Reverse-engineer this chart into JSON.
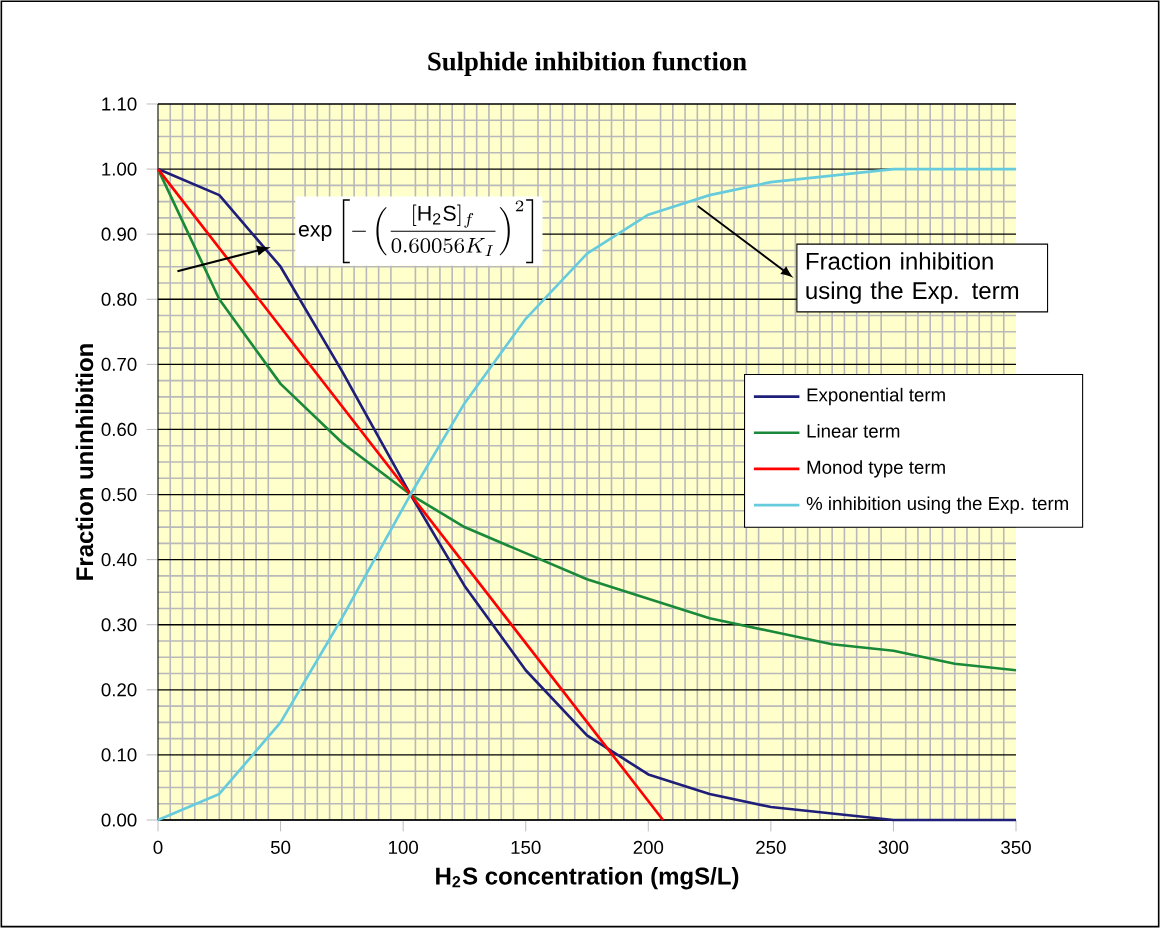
{
  "chart_data": {
    "type": "line",
    "title": "Sulphide inhibition function",
    "xlabel": "H$_{2}$S concentration (mgS/L)",
    "ylabel": "Fraction uninhibition",
    "xlim": [
      0,
      350
    ],
    "ylim": [
      0,
      1.1
    ],
    "xticks": [
      0,
      50,
      100,
      150,
      200,
      250,
      300,
      350
    ],
    "yticks": [
      {
        "value": 0,
        "label": "0.00"
      },
      {
        "value": 0.1,
        "label": "0.10"
      },
      {
        "value": 0.2,
        "label": "0.20"
      },
      {
        "value": 0.3,
        "label": "0.30"
      },
      {
        "value": 0.4,
        "label": "0.40"
      },
      {
        "value": 0.5,
        "label": "0.50"
      },
      {
        "value": 0.6,
        "label": "0.60"
      },
      {
        "value": 0.7,
        "label": "0.70"
      },
      {
        "value": 0.8,
        "label": "0.80"
      },
      {
        "value": 0.9,
        "label": "0.90"
      },
      {
        "value": 1.0,
        "label": "1.00"
      },
      {
        "value": 1.1,
        "label": "1.10"
      }
    ],
    "grid": "y",
    "legend": "right",
    "marker": "none",
    "line_style": "solid",
    "x": [
      0,
      25,
      50,
      75,
      103,
      125,
      150,
      175,
      200,
      225,
      250,
      275,
      300,
      325,
      350
    ],
    "series": [
      {
        "name": "Exponential term",
        "color": "#1f1f7a",
        "values": [
          1,
          0.96,
          0.85,
          0.69,
          0.5,
          0.36,
          0.23,
          0.13,
          0.07,
          0.04,
          0.02,
          0.01,
          0.0,
          0.0,
          0.0
        ]
      },
      {
        "name": "Linear term",
        "color": "#1a8a3a",
        "values": [
          1,
          0.8,
          0.67,
          0.58,
          0.5,
          0.45,
          0.41,
          0.37,
          0.34,
          0.31,
          0.29,
          0.27,
          0.26,
          0.24,
          0.23
        ]
      },
      {
        "name": "Monod type term",
        "color": "#ff0000",
        "x": [
          0,
          206
        ],
        "values": [
          1,
          0
        ]
      },
      {
        "name": "% inhibition using the Exp. term",
        "color": "#66ccdd",
        "values": [
          0,
          0.04,
          0.15,
          0.31,
          0.5,
          0.64,
          0.77,
          0.87,
          0.93,
          0.96,
          0.98,
          0.99,
          1.0,
          1.0,
          1.0
        ]
      }
    ],
    "annotations": [
      {
        "text": "\\exp\\left[-\\left(\\frac{[\\mathrm{H_2S}]_f}{0.60056K_{I}}\\right)^{2}\\right]",
        "x": 46,
        "y": 0.88
      },
      "Fraction inhibition using the Exp. term"
    ]
  }
}
